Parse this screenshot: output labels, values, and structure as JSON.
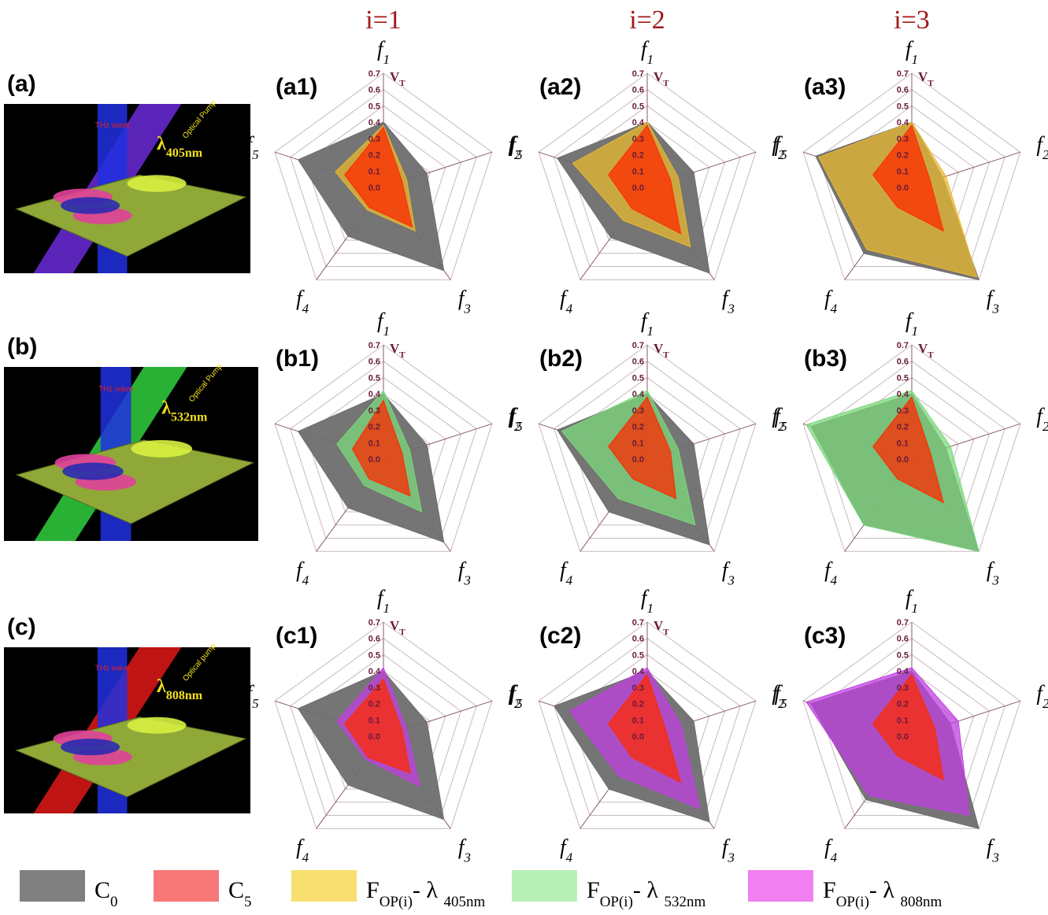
{
  "column_titles": [
    "i=1",
    "i=2",
    "i=3"
  ],
  "illustrations": [
    {
      "label": "(a)",
      "beam": "THz wave",
      "pump": "Optical Pump",
      "wavelength": [
        "λ",
        "405nm"
      ],
      "pump_color": "#6a2ad8"
    },
    {
      "label": "(b)",
      "beam": "THz wave",
      "pump": "Optical Pump",
      "wavelength": [
        "λ",
        "532nm"
      ],
      "pump_color": "#30d040"
    },
    {
      "label": "(c)",
      "beam": "THz wave",
      "pump": "Optical pump",
      "wavelength": [
        "λ",
        "808nm"
      ],
      "pump_color": "#e01818"
    }
  ],
  "chart_data": [
    {
      "type": "radar",
      "panel_label": "(a1)",
      "axes": [
        [
          "f",
          "1"
        ],
        [
          "f",
          "2"
        ],
        [
          "f",
          "3"
        ],
        [
          "f",
          "4"
        ],
        [
          "f",
          "5"
        ]
      ],
      "rtick_title": [
        "V",
        "T"
      ],
      "rlim": [
        0,
        0.7
      ],
      "rticks": [
        {
          "value": 0,
          "label": "0.0"
        },
        0.1,
        0.2,
        0.3,
        0.4,
        0.5,
        0.6,
        0.7
      ],
      "grid": true,
      "series": [
        {
          "color": "#6e6e6e",
          "values": [
            0.4,
            0.28,
            0.63,
            0.37,
            0.55
          ]
        },
        {
          "color": "#e8b830",
          "values": [
            0.38,
            0.15,
            0.33,
            0.17,
            0.31
          ]
        },
        {
          "color": "#ff2a00",
          "values": [
            0.37,
            0.12,
            0.3,
            0.15,
            0.25
          ]
        }
      ]
    },
    {
      "type": "radar",
      "panel_label": "(a2)",
      "axes": [
        [
          "f",
          "1"
        ],
        [
          "f",
          "2"
        ],
        [
          "f",
          "3"
        ],
        [
          "f",
          "4"
        ],
        [
          "f",
          "5"
        ]
      ],
      "rtick_title": [
        "V",
        "T"
      ],
      "rlim": [
        0,
        0.7
      ],
      "rticks": [
        {
          "value": 0,
          "label": "0.0"
        },
        0.1,
        0.2,
        0.3,
        0.4,
        0.5,
        0.6,
        0.7
      ],
      "grid": true,
      "series": [
        {
          "color": "#6e6e6e",
          "values": [
            0.4,
            0.3,
            0.65,
            0.38,
            0.58
          ]
        },
        {
          "color": "#e8b830",
          "values": [
            0.4,
            0.2,
            0.45,
            0.25,
            0.48
          ]
        },
        {
          "color": "#ff2a00",
          "values": [
            0.38,
            0.15,
            0.35,
            0.16,
            0.25
          ]
        }
      ]
    },
    {
      "type": "radar",
      "panel_label": "(a3)",
      "axes": [
        [
          "f",
          "1"
        ],
        [
          "f",
          "2"
        ],
        [
          "f",
          "3"
        ],
        [
          "f",
          "4"
        ],
        [
          "f",
          "5"
        ]
      ],
      "rtick_title": [
        "V",
        "T"
      ],
      "rlim": [
        0,
        0.7
      ],
      "rticks": [
        {
          "value": 0,
          "label": "0.0"
        },
        0.1,
        0.2,
        0.3,
        0.4,
        0.5,
        0.6,
        0.7
      ],
      "grid": true,
      "series": [
        {
          "color": "#6e6e6e",
          "values": [
            0.4,
            0.2,
            0.7,
            0.5,
            0.62
          ]
        },
        {
          "color": "#e8b830",
          "values": [
            0.4,
            0.22,
            0.68,
            0.47,
            0.6
          ]
        },
        {
          "color": "#ff2a00",
          "values": [
            0.38,
            0.12,
            0.33,
            0.15,
            0.25
          ]
        }
      ]
    },
    {
      "type": "radar",
      "panel_label": "(b1)",
      "axes": [
        [
          "f",
          "1"
        ],
        [
          "f",
          "2"
        ],
        [
          "f",
          "3"
        ],
        [
          "f",
          "4"
        ],
        [
          "f",
          "5"
        ]
      ],
      "rtick_title": [
        "V",
        "T"
      ],
      "rlim": [
        0,
        0.7
      ],
      "rticks": [
        {
          "value": 0,
          "label": "0.0"
        },
        0.1,
        0.2,
        0.3,
        0.4,
        0.5,
        0.6,
        0.7
      ],
      "grid": true,
      "series": [
        {
          "color": "#6e6e6e",
          "values": [
            0.4,
            0.28,
            0.63,
            0.37,
            0.55
          ]
        },
        {
          "color": "#7cd87c",
          "values": [
            0.42,
            0.17,
            0.4,
            0.2,
            0.3
          ]
        },
        {
          "color": "#ff2a00",
          "values": [
            0.36,
            0.12,
            0.28,
            0.15,
            0.2
          ]
        }
      ]
    },
    {
      "type": "radar",
      "panel_label": "(b2)",
      "axes": [
        [
          "f",
          "1"
        ],
        [
          "f",
          "2"
        ],
        [
          "f",
          "3"
        ],
        [
          "f",
          "4"
        ],
        [
          "f",
          "5"
        ]
      ],
      "rtick_title": [
        "V",
        "T"
      ],
      "rlim": [
        0,
        0.7
      ],
      "rticks": [
        {
          "value": 0,
          "label": "0.0"
        },
        0.1,
        0.2,
        0.3,
        0.4,
        0.5,
        0.6,
        0.7
      ],
      "grid": true,
      "series": [
        {
          "color": "#6e6e6e",
          "values": [
            0.4,
            0.3,
            0.65,
            0.4,
            0.58
          ]
        },
        {
          "color": "#7cd87c",
          "values": [
            0.42,
            0.2,
            0.5,
            0.3,
            0.55
          ]
        },
        {
          "color": "#ff2a00",
          "values": [
            0.38,
            0.15,
            0.3,
            0.15,
            0.25
          ]
        }
      ]
    },
    {
      "type": "radar",
      "panel_label": "(b3)",
      "axes": [
        [
          "f",
          "1"
        ],
        [
          "f",
          "2"
        ],
        [
          "f",
          "3"
        ],
        [
          "f",
          "4"
        ],
        [
          "f",
          "5"
        ]
      ],
      "rtick_title": [
        "V",
        "T"
      ],
      "rlim": [
        0,
        0.7
      ],
      "rticks": [
        {
          "value": 0,
          "label": "0.0"
        },
        0.1,
        0.2,
        0.3,
        0.4,
        0.5,
        0.6,
        0.7
      ],
      "grid": true,
      "series": [
        {
          "color": "#6e6e6e",
          "values": [
            0.4,
            0.22,
            0.7,
            0.5,
            0.65
          ]
        },
        {
          "color": "#7cd87c",
          "values": [
            0.42,
            0.25,
            0.7,
            0.5,
            0.68
          ]
        },
        {
          "color": "#ff2a00",
          "values": [
            0.38,
            0.12,
            0.33,
            0.15,
            0.25
          ]
        }
      ]
    },
    {
      "type": "radar",
      "panel_label": "(c1)",
      "axes": [
        [
          "f",
          "1"
        ],
        [
          "f",
          "2"
        ],
        [
          "f",
          "3"
        ],
        [
          "f",
          "4"
        ],
        [
          "f",
          "5"
        ]
      ],
      "rtick_title": [
        "V",
        "T"
      ],
      "rlim": [
        0,
        0.7
      ],
      "rticks": [
        {
          "value": 0,
          "label": "0.0"
        },
        0.1,
        0.2,
        0.3,
        0.4,
        0.5,
        0.6,
        0.7
      ],
      "grid": true,
      "series": [
        {
          "color": "#6e6e6e",
          "values": [
            0.4,
            0.28,
            0.63,
            0.37,
            0.55
          ]
        },
        {
          "color": "#c040e0",
          "values": [
            0.42,
            0.15,
            0.38,
            0.18,
            0.3
          ]
        },
        {
          "color": "#ff2a00",
          "values": [
            0.35,
            0.12,
            0.28,
            0.16,
            0.25
          ]
        }
      ]
    },
    {
      "type": "radar",
      "panel_label": "(c2)",
      "axes": [
        [
          "f",
          "1"
        ],
        [
          "f",
          "2"
        ],
        [
          "f",
          "3"
        ],
        [
          "f",
          "4"
        ],
        [
          "f",
          "5"
        ]
      ],
      "rtick_title": [
        "V",
        "T"
      ],
      "rlim": [
        0,
        0.7
      ],
      "rticks": [
        {
          "value": 0,
          "label": "0.0"
        },
        0.1,
        0.2,
        0.3,
        0.4,
        0.5,
        0.6,
        0.7
      ],
      "grid": true,
      "series": [
        {
          "color": "#6e6e6e",
          "values": [
            0.4,
            0.3,
            0.65,
            0.4,
            0.6
          ]
        },
        {
          "color": "#c040e0",
          "values": [
            0.42,
            0.22,
            0.55,
            0.3,
            0.5
          ]
        },
        {
          "color": "#ff2a00",
          "values": [
            0.38,
            0.12,
            0.35,
            0.16,
            0.25
          ]
        }
      ]
    },
    {
      "type": "radar",
      "panel_label": "(c3)",
      "axes": [
        [
          "f",
          "1"
        ],
        [
          "f",
          "2"
        ],
        [
          "f",
          "3"
        ],
        [
          "f",
          "4"
        ],
        [
          "f",
          "5"
        ]
      ],
      "rlim": [
        0,
        0.7
      ],
      "rticks": [
        {
          "value": 0,
          "label": "0.0"
        },
        0.1,
        0.2,
        0.3,
        0.4,
        0.5,
        0.6,
        0.7
      ],
      "grid": true,
      "series": [
        {
          "color": "#6e6e6e",
          "values": [
            0.4,
            0.25,
            0.7,
            0.48,
            0.65
          ]
        },
        {
          "color": "#c040e0",
          "values": [
            0.42,
            0.3,
            0.6,
            0.45,
            0.68
          ]
        },
        {
          "color": "#ff2a00",
          "values": [
            0.38,
            0.15,
            0.33,
            0.15,
            0.25
          ]
        }
      ]
    }
  ],
  "legend": [
    {
      "color": "#808080",
      "text": [
        "C",
        "0"
      ]
    },
    {
      "color": "#f87878",
      "text": [
        "C",
        "5"
      ]
    },
    {
      "color": "#f8e070",
      "text": [
        "F",
        "OP(i)",
        "- λ ",
        "405nm"
      ]
    },
    {
      "color": "#b8f0b8",
      "text": [
        "F",
        "OP(i)",
        "- λ ",
        "532nm"
      ]
    },
    {
      "color": "#f080f0",
      "text": [
        "F",
        "OP(i)",
        "- λ ",
        "808nm"
      ]
    }
  ]
}
